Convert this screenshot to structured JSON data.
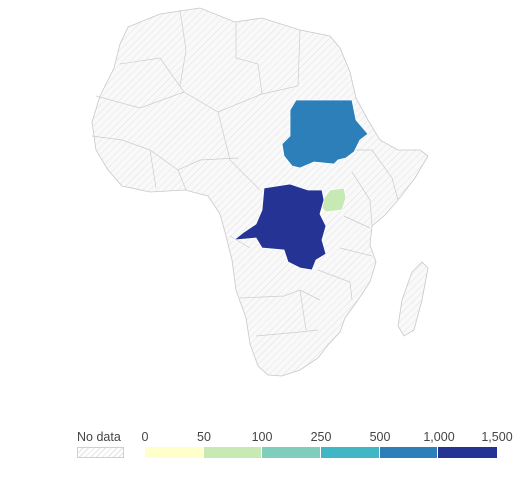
{
  "legend": {
    "no_data_label": "No data",
    "tick_labels": [
      "0",
      "50",
      "100",
      "250",
      "500",
      "1,000",
      "1,500"
    ],
    "bins": [
      {
        "range": "0–50",
        "color": "#ffffcc"
      },
      {
        "range": "50–100",
        "color": "#c7e9b4"
      },
      {
        "range": "100–250",
        "color": "#7fcdbb"
      },
      {
        "range": "250–500",
        "color": "#41b6c4"
      },
      {
        "range": "500–1,000",
        "color": "#2c7fb8"
      },
      {
        "range": "1,000–1,500",
        "color": "#253494"
      }
    ]
  },
  "colors": {
    "no_data_fill": "#f7f7f7",
    "no_data_hatch": "#e0e0e0",
    "border": "#c8c8c8"
  },
  "regions": [
    {
      "name": "Sudan",
      "bin": "500–1,000",
      "color": "#2c7fb8"
    },
    {
      "name": "Democratic Republic of the Congo",
      "bin": "1,000–1,500",
      "color": "#253494"
    },
    {
      "name": "Uganda",
      "bin": "50–100",
      "color": "#c7e9b4"
    }
  ]
}
